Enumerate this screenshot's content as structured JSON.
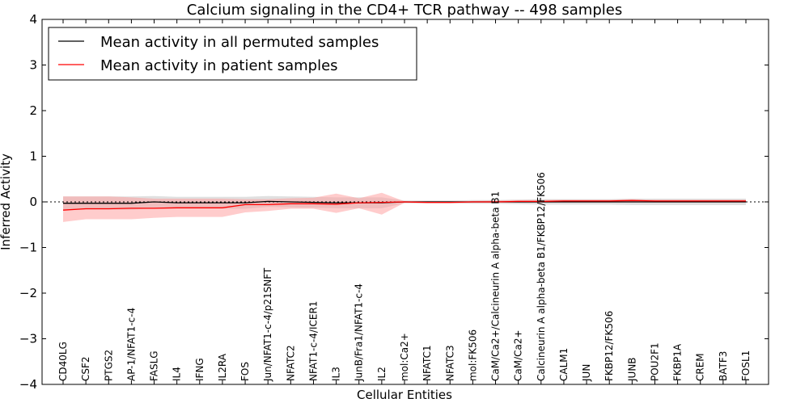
{
  "chart_data": {
    "type": "line",
    "title": "Calcium signaling in the CD4+ TCR pathway -- 498 samples",
    "xlabel": "Cellular Entities",
    "ylabel": "Inferred Activity",
    "ylim": [
      -4,
      4
    ],
    "yticks": [
      -4,
      -3,
      -2,
      -1,
      0,
      1,
      2,
      3,
      4
    ],
    "ytick_labels": [
      "−4",
      "−3",
      "−2",
      "−1",
      "0",
      "1",
      "2",
      "3",
      "4"
    ],
    "categories": [
      "CD40LG",
      "CSF2",
      "PTGS2",
      "AP-1/NFAT1-c-4",
      "FASLG",
      "IL4",
      "IFNG",
      "IL2RA",
      "FOS",
      "Jun/NFAT1-c-4/p21SNFT",
      "NFATC2",
      "NFAT1-c-4/ICER1",
      "IL3",
      "JunB/Fra1/NFAT1-c-4",
      "IL2",
      "mol:Ca2+",
      "NFATC1",
      "NFATC3",
      "mol:FK506",
      "CaM/Ca2+/Calcineurin A alpha-beta B1",
      "CaM/Ca2+",
      "Calcineurin A alpha-beta B1/FKBP12/FK506",
      "CALM1",
      "JUN",
      "FKBP12/FK506",
      "JUNB",
      "POU2F1",
      "FKBP1A",
      "CREM",
      "BATF3",
      "FOSL1"
    ],
    "legend_position": "top-left",
    "series": [
      {
        "name": "Mean activity in all permuted samples",
        "color": "#000000",
        "band_color": "#cccccc",
        "values": [
          -0.03,
          -0.03,
          -0.03,
          -0.03,
          0.0,
          -0.02,
          -0.02,
          -0.02,
          -0.02,
          0.01,
          0.0,
          -0.01,
          -0.02,
          -0.02,
          -0.02,
          0.0,
          0.0,
          0.0,
          0.0,
          0.0,
          0.0,
          0.0,
          0.0,
          0.0,
          0.0,
          0.0,
          0.0,
          0.0,
          0.0,
          0.0,
          0.0
        ],
        "upper": [
          0.12,
          0.12,
          0.12,
          0.12,
          0.13,
          0.11,
          0.11,
          0.11,
          0.11,
          0.13,
          0.12,
          0.11,
          0.1,
          0.1,
          0.1,
          0.03,
          0.03,
          0.03,
          0.04,
          0.04,
          0.05,
          0.06,
          0.06,
          0.06,
          0.06,
          0.07,
          0.07,
          0.07,
          0.07,
          0.07,
          0.07
        ],
        "lower": [
          -0.17,
          -0.17,
          -0.17,
          -0.17,
          -0.14,
          -0.15,
          -0.15,
          -0.15,
          -0.15,
          -0.11,
          -0.12,
          -0.13,
          -0.14,
          -0.14,
          -0.14,
          -0.03,
          -0.03,
          -0.03,
          -0.04,
          -0.04,
          -0.05,
          -0.06,
          -0.06,
          -0.06,
          -0.06,
          -0.07,
          -0.07,
          -0.07,
          -0.07,
          -0.07,
          -0.07
        ]
      },
      {
        "name": "Mean activity in patient samples",
        "color": "#ff0000",
        "band_color": "#ff9999",
        "values": [
          -0.18,
          -0.15,
          -0.15,
          -0.14,
          -0.14,
          -0.13,
          -0.13,
          -0.13,
          -0.06,
          -0.06,
          -0.04,
          -0.04,
          -0.05,
          -0.02,
          -0.01,
          0.0,
          -0.01,
          -0.01,
          0.0,
          0.0,
          0.01,
          0.01,
          0.02,
          0.02,
          0.02,
          0.03,
          0.02,
          0.02,
          0.02,
          0.02,
          0.02
        ],
        "upper": [
          0.12,
          0.12,
          0.12,
          0.1,
          0.07,
          0.07,
          0.07,
          0.07,
          0.06,
          0.06,
          0.08,
          0.09,
          0.18,
          0.08,
          0.2,
          0.01,
          0.0,
          0.0,
          0.02,
          0.03,
          0.04,
          0.04,
          0.05,
          0.05,
          0.05,
          0.06,
          0.05,
          0.05,
          0.05,
          0.05,
          0.05
        ],
        "lower": [
          -0.44,
          -0.38,
          -0.38,
          -0.38,
          -0.35,
          -0.33,
          -0.33,
          -0.33,
          -0.23,
          -0.2,
          -0.15,
          -0.15,
          -0.24,
          -0.14,
          -0.28,
          -0.02,
          -0.03,
          -0.03,
          -0.02,
          -0.02,
          -0.02,
          -0.02,
          -0.01,
          -0.01,
          -0.01,
          0.0,
          -0.01,
          -0.01,
          -0.01,
          -0.01,
          -0.01
        ]
      }
    ]
  }
}
